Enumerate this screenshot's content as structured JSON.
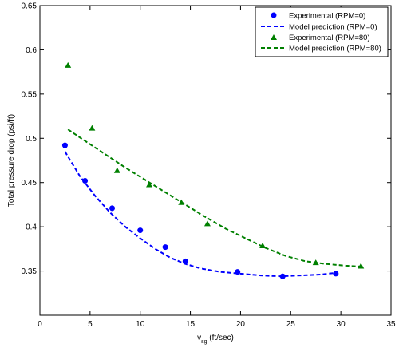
{
  "chart_data": {
    "type": "scatter",
    "title": "",
    "xlabel_main": "v",
    "xlabel_sub": "sg",
    "xlabel_unit": " (ft/sec)",
    "ylabel": "Total pressure drop (psi/ft)",
    "xlim": [
      0,
      35
    ],
    "ylim": [
      0.3,
      0.65
    ],
    "xticks": [
      0,
      5,
      10,
      15,
      20,
      25,
      30,
      35
    ],
    "yticks": [
      0.35,
      0.4,
      0.45,
      0.5,
      0.55,
      0.6,
      0.65
    ],
    "xtick_labels": [
      "0",
      "5",
      "10",
      "15",
      "20",
      "25",
      "30",
      "35"
    ],
    "ytick_labels": [
      "0.35",
      "0.4",
      "0.45",
      "0.5",
      "0.55",
      "0.6",
      "0.65"
    ],
    "grid": false,
    "legend_position": "top-right",
    "series": [
      {
        "name": "Experimental (RPM=0)",
        "kind": "scatter",
        "marker": "circle",
        "color": "#0000ff",
        "x": [
          2.5,
          4.5,
          7.2,
          10.0,
          12.5,
          14.5,
          19.7,
          24.2,
          29.5
        ],
        "y": [
          0.492,
          0.452,
          0.421,
          0.396,
          0.377,
          0.361,
          0.349,
          0.344,
          0.347
        ]
      },
      {
        "name": "Model prediction (RPM=0)",
        "kind": "line",
        "dash": true,
        "color": "#0000ff",
        "x": [
          2.5,
          4.0,
          5.5,
          7.0,
          8.5,
          10.0,
          11.5,
          13.0,
          14.5,
          16.0,
          18.0,
          20.0,
          22.0,
          24.0,
          26.0,
          28.0,
          29.5
        ],
        "y": [
          0.485,
          0.457,
          0.435,
          0.416,
          0.4,
          0.387,
          0.375,
          0.365,
          0.358,
          0.353,
          0.349,
          0.347,
          0.345,
          0.344,
          0.345,
          0.346,
          0.348
        ]
      },
      {
        "name": "Experimental (RPM=80)",
        "kind": "scatter",
        "marker": "triangle",
        "color": "#008000",
        "x": [
          2.8,
          5.2,
          7.7,
          10.9,
          14.1,
          16.7,
          22.2,
          27.5,
          32.0
        ],
        "y": [
          0.582,
          0.511,
          0.463,
          0.447,
          0.427,
          0.403,
          0.378,
          0.359,
          0.355
        ]
      },
      {
        "name": "Model prediction (RPM=80)",
        "kind": "line",
        "dash": true,
        "color": "#008000",
        "x": [
          2.8,
          4.5,
          6.5,
          8.5,
          10.5,
          12.5,
          14.5,
          16.5,
          18.5,
          20.5,
          22.5,
          24.5,
          26.5,
          28.5,
          30.5,
          32.0
        ],
        "y": [
          0.51,
          0.497,
          0.482,
          0.467,
          0.453,
          0.439,
          0.425,
          0.411,
          0.398,
          0.387,
          0.376,
          0.367,
          0.361,
          0.358,
          0.356,
          0.355
        ]
      }
    ]
  }
}
